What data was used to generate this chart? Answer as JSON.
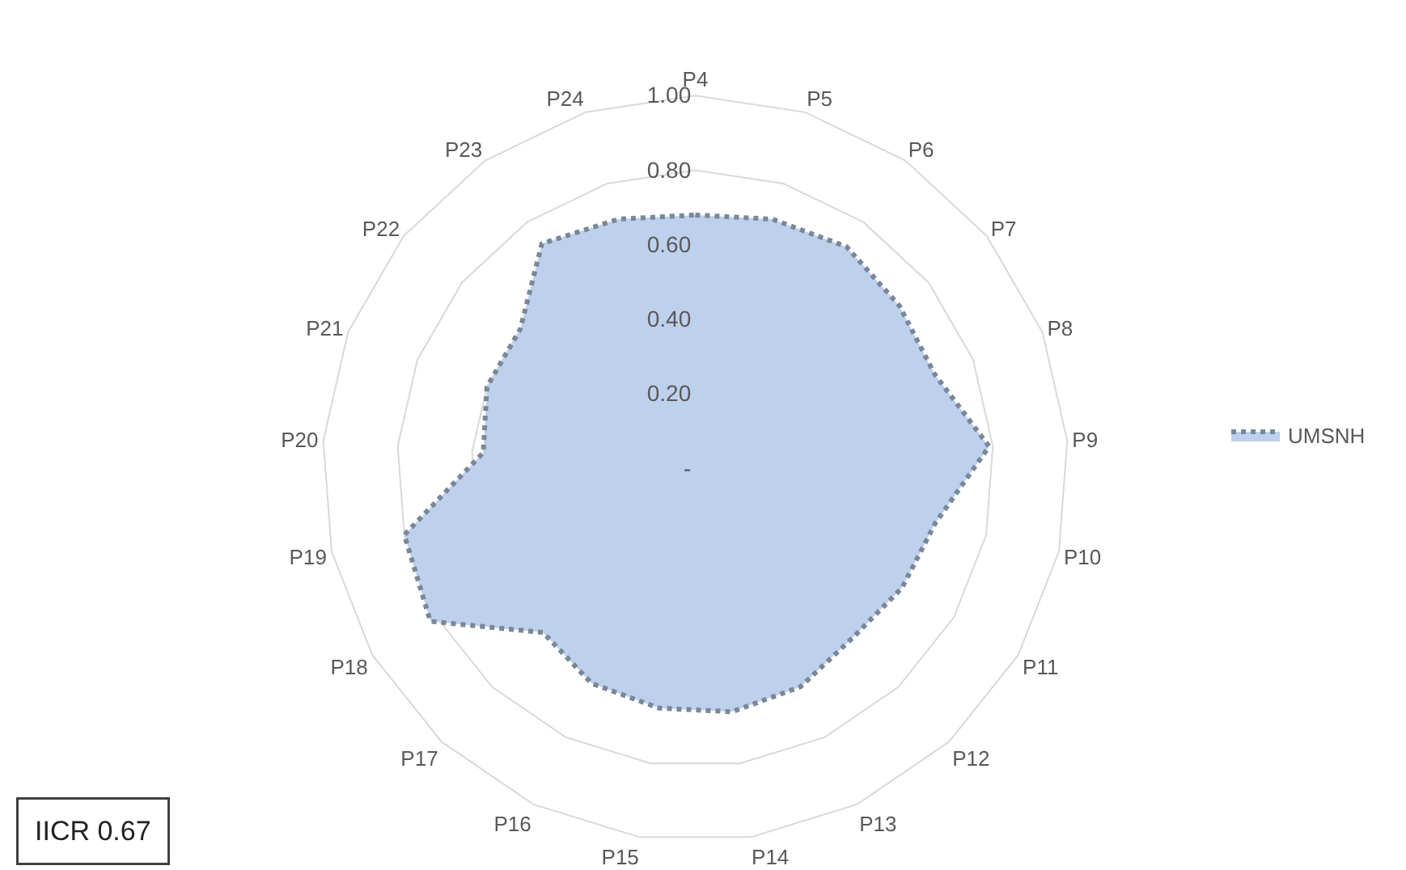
{
  "chart_data": {
    "type": "radar",
    "categories": [
      "P4",
      "P5",
      "P6",
      "P7",
      "P8",
      "P9",
      "P10",
      "P11",
      "P12",
      "P13",
      "P14",
      "P15",
      "P16",
      "P17",
      "P18",
      "P19",
      "P20",
      "P21",
      "P22",
      "P23",
      "P24"
    ],
    "series": [
      {
        "name": "UMSNH",
        "color": "#bdd0ec",
        "values": [
          0.68,
          0.7,
          0.72,
          0.7,
          0.69,
          0.79,
          0.66,
          0.64,
          0.62,
          0.65,
          0.66,
          0.65,
          0.64,
          0.6,
          0.82,
          0.8,
          0.57,
          0.6,
          0.6,
          0.73,
          0.7
        ]
      }
    ],
    "ylim": [
      0,
      1
    ],
    "yticks": [
      {
        "value": 0,
        "label": "-"
      },
      {
        "value": 0.2,
        "label": "0.20"
      },
      {
        "value": 0.4,
        "label": "0.40"
      },
      {
        "value": 0.6,
        "label": "0.60"
      },
      {
        "value": 0.8,
        "label": "0.80"
      },
      {
        "value": 1.0,
        "label": "1.00"
      }
    ],
    "grid": "y",
    "legend": "right",
    "line_style": "dotted",
    "marker": "none",
    "annotations": [
      "IICR 0.67"
    ]
  }
}
